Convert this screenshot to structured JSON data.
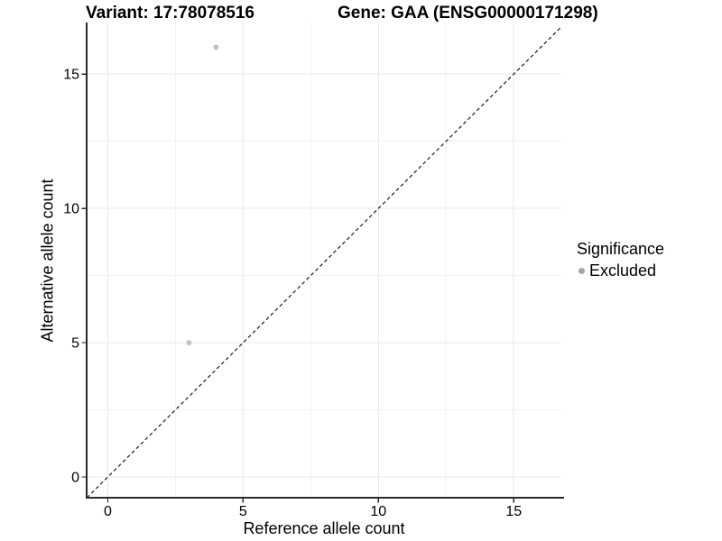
{
  "chart_data": {
    "type": "scatter",
    "title_left": "Variant: 17:78078516",
    "title_right": "Gene: GAA (ENSG00000171298)",
    "xlabel": "Reference allele count",
    "ylabel": "Alternative allele count",
    "xlim": [
      -0.78,
      16.76
    ],
    "ylim": [
      -0.77,
      16.92
    ],
    "x_ticks": [
      0,
      5,
      10,
      15
    ],
    "y_ticks": [
      0,
      5,
      10,
      15
    ],
    "x_minor_gridlines": [
      2.5,
      7.5,
      12.5
    ],
    "y_minor_gridlines": [
      2.5,
      7.5,
      12.5
    ],
    "grid": true,
    "legend_position": "right",
    "series": [
      {
        "name": "Excluded",
        "color": "#c2c2c2",
        "points": [
          {
            "x": 3,
            "y": 5
          },
          {
            "x": 4,
            "y": 16
          }
        ]
      }
    ],
    "reference_line": {
      "type": "identity",
      "slope": 1,
      "intercept": 0,
      "style": "dashed",
      "color": "#1a1a1a"
    },
    "legend": {
      "title": "Significance",
      "items": [
        {
          "label": "Excluded",
          "swatch_color": "#a6a6a6"
        }
      ]
    },
    "colors": {
      "background": "#ffffff",
      "axis_line": "#2a2a2a",
      "tick_label": "#000000",
      "major_gridline": "#e8e8e8",
      "minor_gridline": "#f3f3f3"
    }
  }
}
